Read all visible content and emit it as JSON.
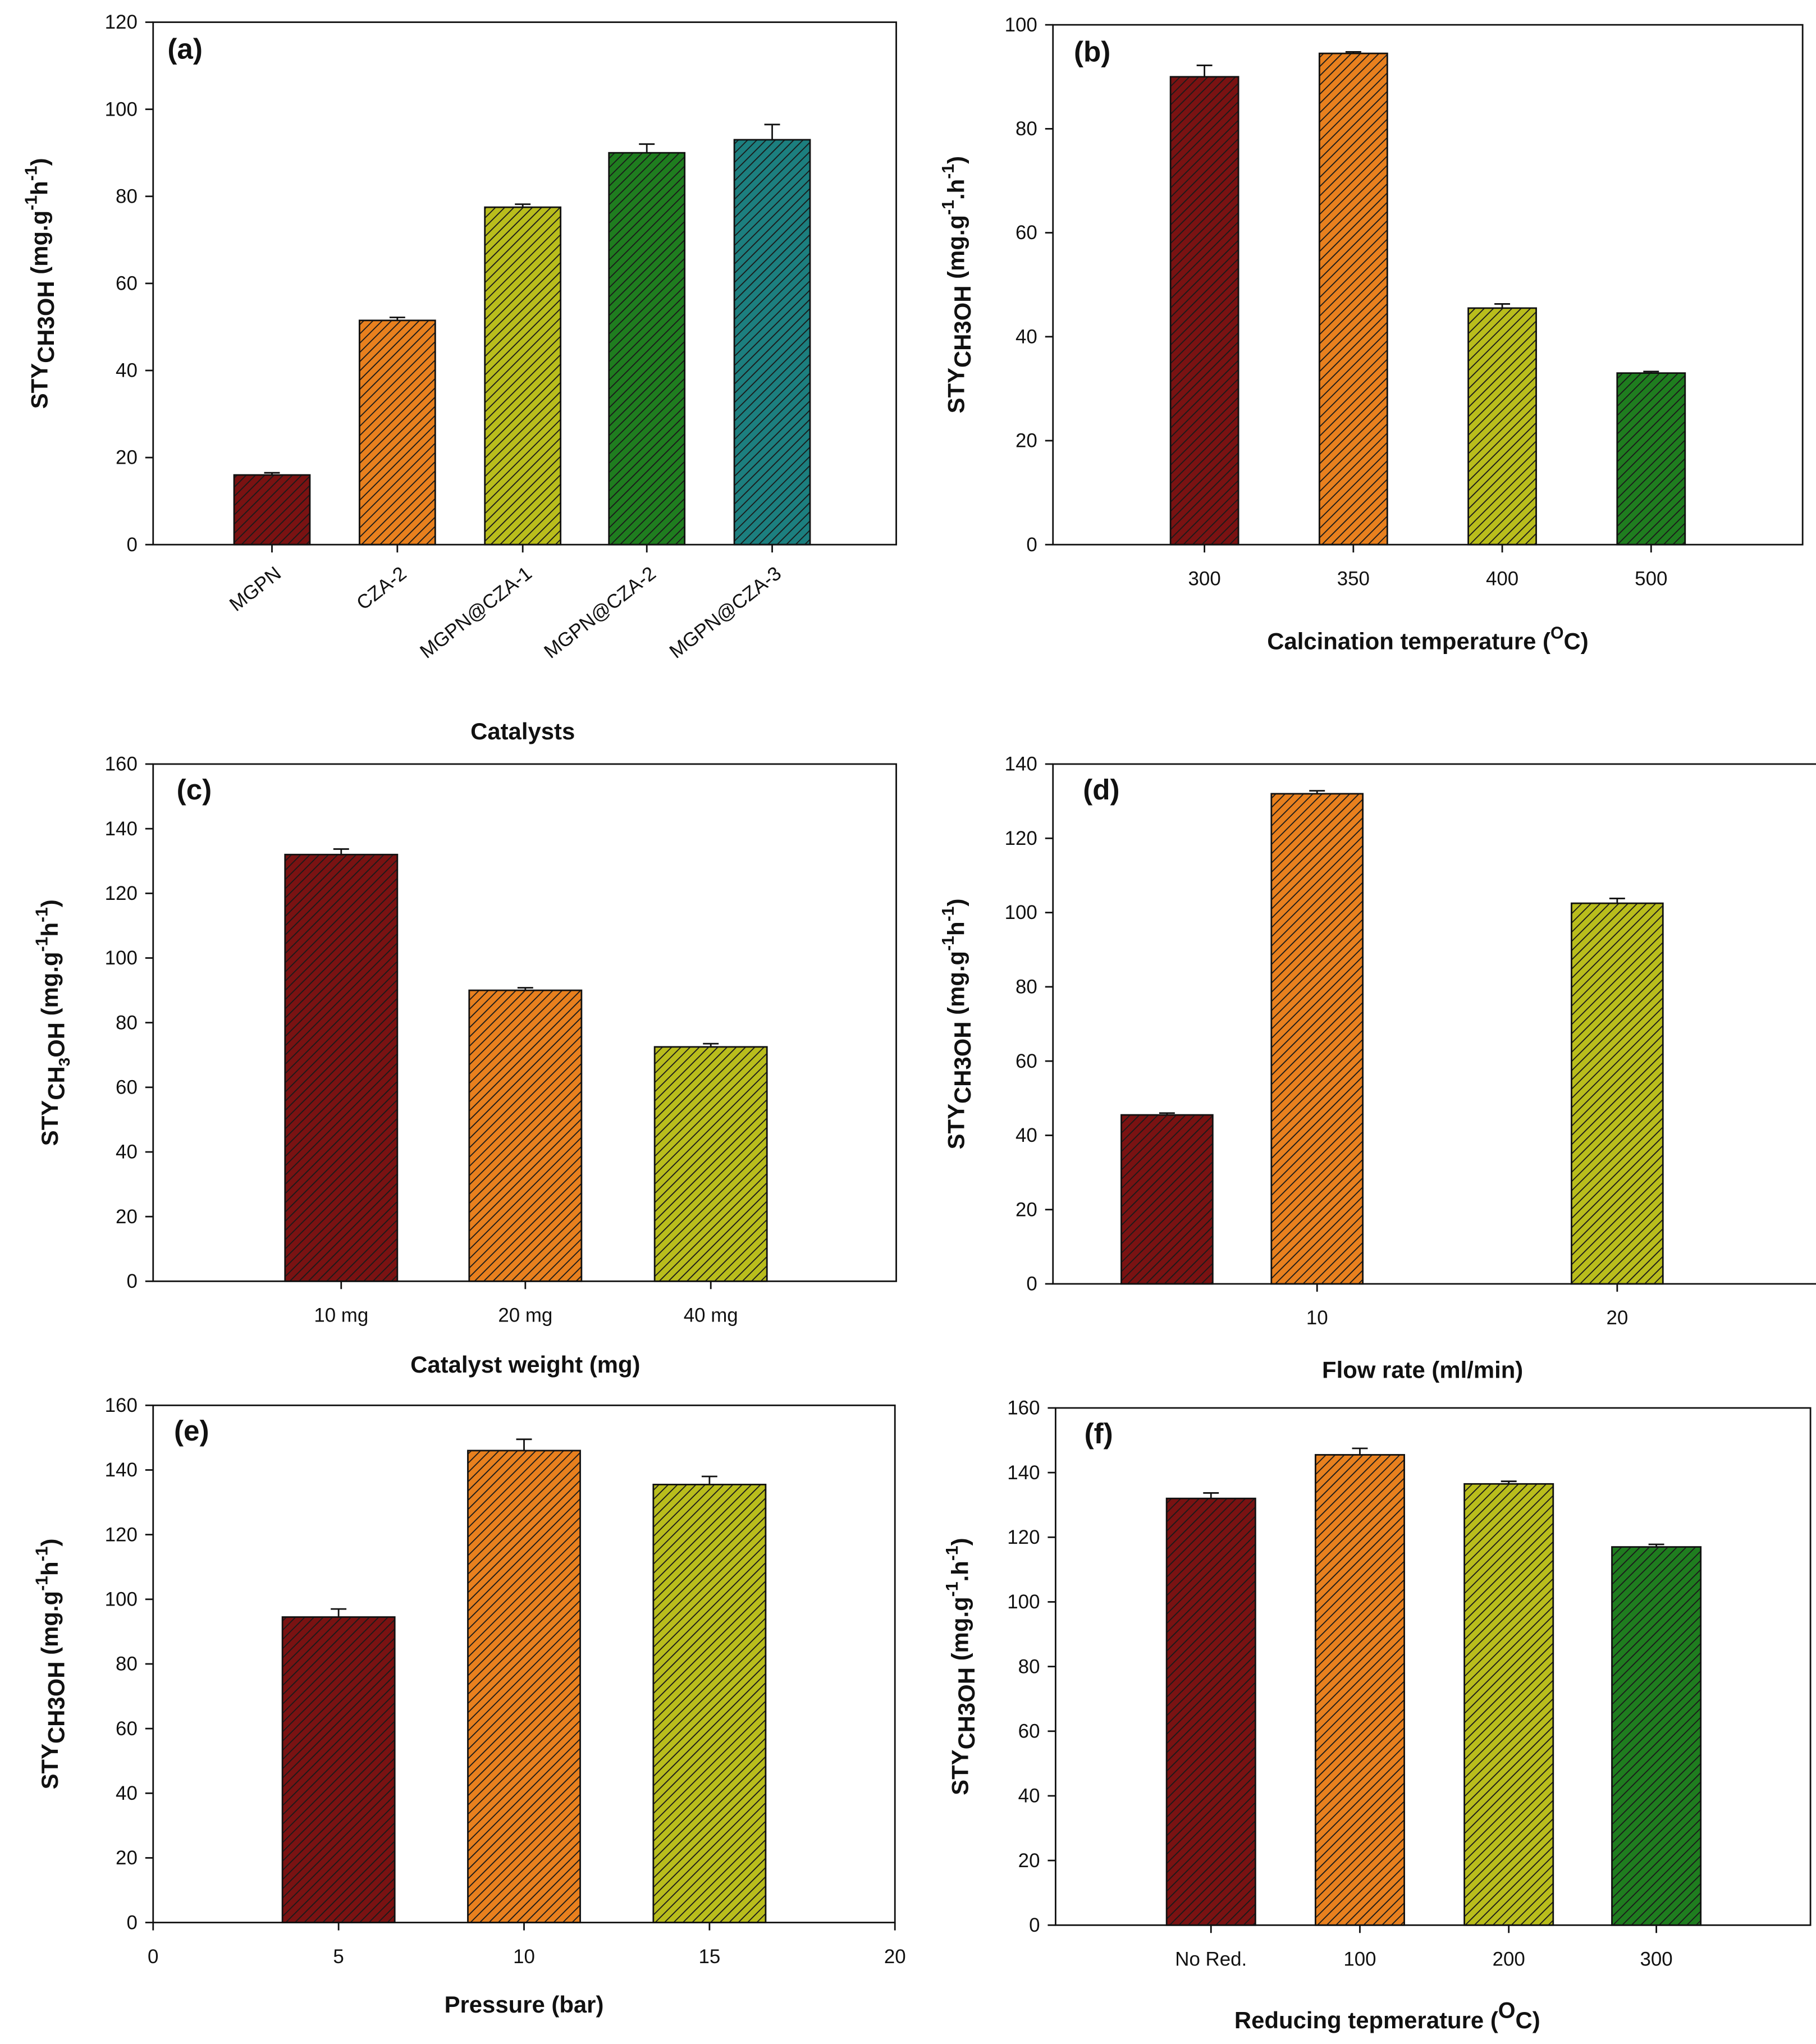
{
  "colors": {
    "darkred": "#7a1212",
    "orange": "#e8801e",
    "olive": "#b9bd1c",
    "green": "#1f7d1f",
    "teal": "#1c7f7f",
    "hatch": "#1a1a1a"
  },
  "chart_data": [
    {
      "type": "bar",
      "panel": "(a)",
      "xlabel": "Catalysts",
      "x_mode": "category",
      "rotate_ticks": true,
      "categories": [
        "MGPN",
        "CZA-2",
        "MGPN@CZA-1",
        "MGPN@CZA-2",
        "MGPN@CZA-3"
      ],
      "values": [
        16,
        51.5,
        77.5,
        90,
        93
      ],
      "errors": [
        0.5,
        0.7,
        0.7,
        2,
        3.5
      ],
      "bar_colors": [
        "darkred",
        "orange",
        "olive",
        "green",
        "teal"
      ],
      "ylim": [
        0,
        120
      ],
      "yticks": [
        0,
        20,
        40,
        60,
        80,
        100,
        120
      ],
      "ylabel": [
        {
          "t": "STY",
          "s": "n"
        },
        {
          "t": "CH3OH",
          "s": "sub"
        },
        {
          "t": " (mg.g",
          "s": "n"
        },
        {
          "t": "-1",
          "s": "sup"
        },
        {
          "t": "h",
          "s": "n"
        },
        {
          "t": "-1",
          "s": "sup"
        },
        {
          "t": ")",
          "s": "n"
        }
      ]
    },
    {
      "type": "bar",
      "panel": "(b)",
      "xlabel": "Calcination temperature (",
      "xlabel_sup": "O",
      "xlabel_end": "C)",
      "x_mode": "category",
      "categories": [
        "300",
        "350",
        "400",
        "500"
      ],
      "values": [
        90,
        94.5,
        45.5,
        33
      ],
      "errors": [
        2.2,
        0.3,
        0.8,
        0.3
      ],
      "bar_colors": [
        "darkred",
        "orange",
        "olive",
        "green"
      ],
      "ylim": [
        0,
        100
      ],
      "yticks": [
        0,
        20,
        40,
        60,
        80,
        100
      ],
      "ylabel": [
        {
          "t": "STY",
          "s": "n"
        },
        {
          "t": "CH3OH",
          "s": "sub"
        },
        {
          "t": " (mg.g",
          "s": "n"
        },
        {
          "t": "-1",
          "s": "sup"
        },
        {
          "t": ".h",
          "s": "n"
        },
        {
          "t": "-1",
          "s": "sup"
        },
        {
          "t": ")",
          "s": "n"
        }
      ]
    },
    {
      "type": "bar",
      "panel": "(c)",
      "xlabel": "Catalyst weight (mg)",
      "x_mode": "category",
      "categories": [
        "10 mg",
        "20 mg",
        "40 mg"
      ],
      "values": [
        132,
        90,
        72.5
      ],
      "errors": [
        1.7,
        0.8,
        1
      ],
      "bar_colors": [
        "darkred",
        "orange",
        "olive"
      ],
      "ylim": [
        0,
        160
      ],
      "yticks": [
        0,
        20,
        40,
        60,
        80,
        100,
        120,
        140,
        160
      ],
      "ylabel": [
        {
          "t": "STY",
          "s": "n"
        },
        {
          "t": "CH",
          "s": "sub"
        },
        {
          "t": "3",
          "s": "subsub"
        },
        {
          "t": "OH",
          "s": "sub"
        },
        {
          "t": " (mg.g",
          "s": "n"
        },
        {
          "t": "-1",
          "s": "sup"
        },
        {
          "t": "h",
          "s": "n"
        },
        {
          "t": "-1",
          "s": "sup"
        },
        {
          "t": ")",
          "s": "n"
        }
      ]
    },
    {
      "type": "bar",
      "panel": "(d)",
      "xlabel": "Flow rate (ml/min)",
      "x_mode": "linear",
      "x": [
        5,
        10,
        20
      ],
      "xticks": [
        10,
        20
      ],
      "xlim": [
        1.2,
        26.7
      ],
      "values": [
        45.5,
        132,
        102.5
      ],
      "errors": [
        0.5,
        0.8,
        1.3
      ],
      "bar_colors": [
        "darkred",
        "orange",
        "olive"
      ],
      "ylim": [
        0,
        140
      ],
      "yticks": [
        0,
        20,
        40,
        60,
        80,
        100,
        120,
        140
      ],
      "ylabel": [
        {
          "t": "STY",
          "s": "n"
        },
        {
          "t": "CH3OH",
          "s": "sub"
        },
        {
          "t": " (mg.g",
          "s": "n"
        },
        {
          "t": "-1",
          "s": "sup"
        },
        {
          "t": "h",
          "s": "n"
        },
        {
          "t": "-1",
          "s": "sup"
        },
        {
          "t": ")",
          "s": "n"
        }
      ]
    },
    {
      "type": "bar",
      "panel": "(e)",
      "xlabel": "Pressure (bar)",
      "x_mode": "linear",
      "x": [
        5,
        10,
        15
      ],
      "xticks": [
        0,
        5,
        10,
        15,
        20
      ],
      "xlim": [
        0,
        20
      ],
      "values": [
        94.5,
        146,
        135.5
      ],
      "errors": [
        2.5,
        3.5,
        2.5
      ],
      "bar_colors": [
        "darkred",
        "orange",
        "olive"
      ],
      "ylim": [
        0,
        160
      ],
      "yticks": [
        0,
        20,
        40,
        60,
        80,
        100,
        120,
        140,
        160
      ],
      "ylabel": [
        {
          "t": "STY",
          "s": "n"
        },
        {
          "t": "CH3OH",
          "s": "sub"
        },
        {
          "t": " (mg.g",
          "s": "n"
        },
        {
          "t": "-1",
          "s": "sup"
        },
        {
          "t": "h",
          "s": "n"
        },
        {
          "t": "-1",
          "s": "sup"
        },
        {
          "t": ")",
          "s": "n"
        }
      ]
    },
    {
      "type": "bar",
      "panel": "(f)",
      "xlabel": "Reducing tepmerature (",
      "xlabel_sup": "O",
      "xlabel_end": "C)",
      "x_mode": "category",
      "categories": [
        "No Red.",
        "100",
        "200",
        "300"
      ],
      "values": [
        132,
        145.5,
        136.5,
        117
      ],
      "errors": [
        1.7,
        2,
        0.8,
        0.8
      ],
      "bar_colors": [
        "darkred",
        "orange",
        "olive",
        "green"
      ],
      "ylim": [
        0,
        160
      ],
      "yticks": [
        0,
        20,
        40,
        60,
        80,
        100,
        120,
        140,
        160
      ],
      "ylabel": [
        {
          "t": "STY",
          "s": "n"
        },
        {
          "t": "CH3OH",
          "s": "sub"
        },
        {
          "t": " (mg.g",
          "s": "n"
        },
        {
          "t": "-1",
          "s": "sup"
        },
        {
          "t": ".h",
          "s": "n"
        },
        {
          "t": "-1",
          "s": "sup"
        },
        {
          "t": ")",
          "s": "n"
        }
      ]
    }
  ]
}
